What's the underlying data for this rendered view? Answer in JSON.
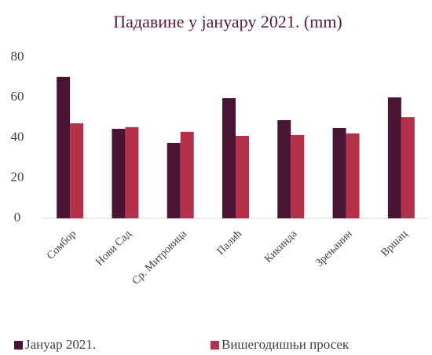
{
  "chart_data": {
    "type": "bar",
    "title": "Падавине у јануару 2021. (mm)",
    "categories": [
      "Сомбор",
      "Нови Сад",
      "Ср. Митровица",
      "Палић",
      "Кикинда",
      "Зрењанин",
      "Вршац"
    ],
    "series": [
      {
        "name": "Јануар 2021.",
        "color": "#4a1534",
        "values": [
          70.3,
          44.5,
          37.5,
          59.7,
          48.8,
          44.9,
          60.1
        ]
      },
      {
        "name": "Вишегодишњи просек",
        "color": "#b5304a",
        "values": [
          47.2,
          45.3,
          43,
          41,
          41.4,
          42.2,
          50.3
        ]
      }
    ],
    "ylim": [
      0,
      80
    ],
    "yticks": [
      0,
      20,
      40,
      60,
      80
    ],
    "grid": false,
    "legend": "bottom"
  }
}
